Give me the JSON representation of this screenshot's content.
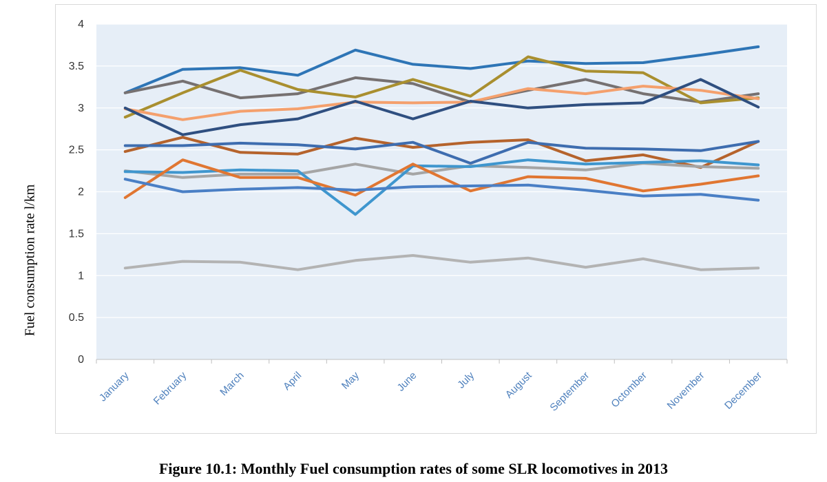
{
  "caption": "Figure 10.1: Monthly Fuel consumption rates of some SLR locomotives in 2013",
  "chart_data": {
    "type": "line",
    "title": "",
    "xlabel": "",
    "ylabel": "Fuel consumption rate l/km",
    "ylim": [
      0,
      4
    ],
    "yticks": [
      "0",
      "0.5",
      "1",
      "1.5",
      "2",
      "2.5",
      "3",
      "3.5",
      "4"
    ],
    "grid": true,
    "categories": [
      "January",
      "February",
      "March",
      "April",
      "May",
      "June",
      "July",
      "August",
      "September",
      "Octomber",
      "November",
      "December"
    ],
    "series": [
      {
        "color": "#2e75b6",
        "values": [
          3.18,
          3.46,
          3.48,
          3.39,
          3.69,
          3.52,
          3.47,
          3.56,
          3.53,
          3.54,
          3.63,
          3.73
        ]
      },
      {
        "color": "#767171",
        "values": [
          3.18,
          3.32,
          3.12,
          3.17,
          3.36,
          3.29,
          3.07,
          3.21,
          3.34,
          3.17,
          3.07,
          3.17
        ]
      },
      {
        "color": "#a98f2f",
        "values": [
          2.89,
          3.18,
          3.45,
          3.22,
          3.13,
          3.34,
          3.14,
          3.61,
          3.44,
          3.42,
          3.06,
          3.12
        ]
      },
      {
        "color": "#f4a06d",
        "values": [
          2.99,
          2.86,
          2.96,
          2.99,
          3.07,
          3.06,
          3.07,
          3.23,
          3.17,
          3.26,
          3.21,
          3.11
        ]
      },
      {
        "color": "#2f4f80",
        "values": [
          3.0,
          2.68,
          2.8,
          2.87,
          3.08,
          2.87,
          3.08,
          3.0,
          3.04,
          3.06,
          3.34,
          3.01
        ]
      },
      {
        "color": "#b5632c",
        "values": [
          2.48,
          2.65,
          2.47,
          2.45,
          2.64,
          2.53,
          2.59,
          2.62,
          2.37,
          2.44,
          2.29,
          2.6
        ]
      },
      {
        "color": "#3e6daf",
        "values": [
          2.55,
          2.55,
          2.58,
          2.56,
          2.51,
          2.59,
          2.34,
          2.59,
          2.52,
          2.51,
          2.49,
          2.6
        ]
      },
      {
        "color": "#a5a5a5",
        "values": [
          2.25,
          2.17,
          2.21,
          2.21,
          2.33,
          2.21,
          2.31,
          2.29,
          2.26,
          2.34,
          2.3,
          2.28
        ]
      },
      {
        "color": "#3f96ce",
        "values": [
          2.24,
          2.23,
          2.26,
          2.25,
          1.73,
          2.31,
          2.3,
          2.38,
          2.33,
          2.35,
          2.37,
          2.32
        ]
      },
      {
        "color": "#e07632",
        "values": [
          1.93,
          2.38,
          2.17,
          2.17,
          1.96,
          2.33,
          2.01,
          2.18,
          2.16,
          2.01,
          2.09,
          2.19
        ]
      },
      {
        "color": "#4a7fc5",
        "values": [
          2.15,
          2.0,
          2.03,
          2.05,
          2.02,
          2.06,
          2.07,
          2.08,
          2.02,
          1.95,
          1.97,
          1.9
        ]
      },
      {
        "color": "#b3b3b3",
        "values": [
          1.09,
          1.17,
          1.16,
          1.07,
          1.18,
          1.24,
          1.16,
          1.21,
          1.1,
          1.2,
          1.07,
          1.09
        ]
      }
    ]
  }
}
